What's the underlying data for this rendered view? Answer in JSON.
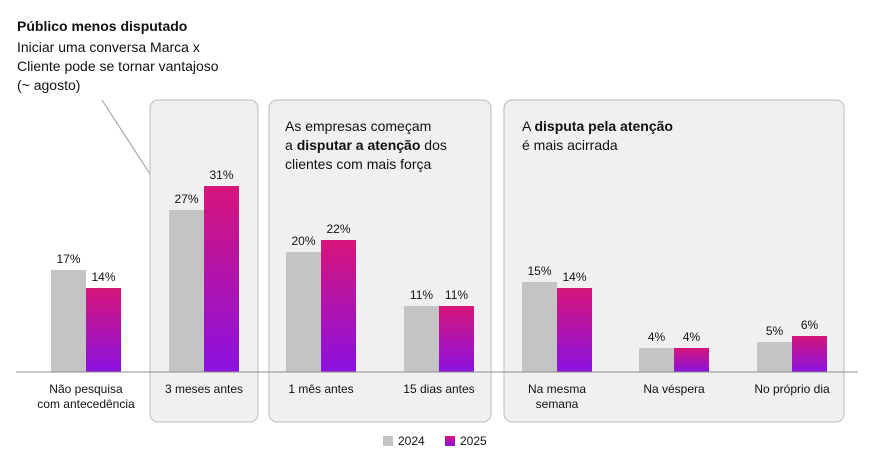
{
  "chart_data": {
    "type": "bar",
    "categories": [
      [
        "Não pesquisa",
        "com antecedência"
      ],
      [
        "3 meses antes"
      ],
      [
        "1 mês antes"
      ],
      [
        "15 dias antes"
      ],
      [
        "Na mesma",
        "semana"
      ],
      [
        "Na véspera"
      ],
      [
        "No próprio dia"
      ]
    ],
    "series": [
      {
        "name": "2024",
        "values": [
          17,
          27,
          20,
          11,
          15,
          4,
          5
        ]
      },
      {
        "name": "2025",
        "values": [
          14,
          31,
          22,
          11,
          14,
          4,
          6
        ]
      }
    ],
    "value_suffix": "%",
    "ylim": [
      0,
      31
    ],
    "colors": {
      "2024": "#c4c4c4",
      "2025_top": "#d6157a",
      "2025_bottom": "#8a12e0",
      "panel_fill": "#f0f0f0",
      "panel_stroke": "#bdbdbd"
    },
    "annotations": {
      "top_left": {
        "title": "Público menos disputado",
        "lines": [
          "Iniciar uma conversa Marca x",
          "Cliente pode se tornar vantajoso",
          "(~ agosto)"
        ]
      },
      "panel_mid": [
        [
          {
            "t": "As empresas começam",
            "b": false
          }
        ],
        [
          {
            "t": "a ",
            "b": false
          },
          {
            "t": "disputar a atenção",
            "b": true
          },
          {
            "t": " dos",
            "b": false
          }
        ],
        [
          {
            "t": "clientes com mais força",
            "b": false
          }
        ]
      ],
      "panel_right": [
        [
          {
            "t": "A ",
            "b": false
          },
          {
            "t": "disputa pela atenção",
            "b": true
          }
        ],
        [
          {
            "t": "é mais acirrada",
            "b": false
          }
        ]
      ]
    },
    "legend": [
      "2024",
      "2025"
    ]
  }
}
